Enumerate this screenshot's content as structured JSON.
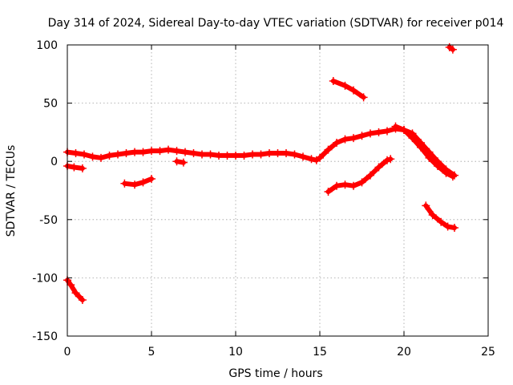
{
  "chart_data": {
    "type": "scatter",
    "title": "Day 314 of 2024, Sidereal Day-to-day VTEC variation (SDTVAR) for receiver p014",
    "xlabel": "GPS time / hours",
    "ylabel": "SDTVAR / TECUs",
    "xlim": [
      0,
      25
    ],
    "ylim": [
      -150,
      100
    ],
    "xticks": [
      0,
      5,
      10,
      15,
      20,
      25
    ],
    "yticks": [
      -150,
      -100,
      -50,
      0,
      50,
      100
    ],
    "xtick_labels": [
      "0",
      "5",
      "10",
      "15",
      "20",
      "25"
    ],
    "ytick_labels": [
      "-150",
      "-100",
      "-50",
      "0",
      "50",
      "100"
    ],
    "grid": true,
    "marker": "+",
    "color": "#ff0000",
    "series": [
      {
        "name": "s1",
        "points": [
          [
            0,
            8
          ],
          [
            0.5,
            7
          ],
          [
            1.0,
            6
          ],
          [
            1.5,
            4
          ],
          [
            2.0,
            3
          ],
          [
            2.5,
            5
          ],
          [
            3.0,
            6
          ],
          [
            3.5,
            7
          ],
          [
            4.0,
            8
          ],
          [
            4.5,
            8
          ],
          [
            5.0,
            9
          ],
          [
            5.5,
            9
          ],
          [
            6.0,
            10
          ],
          [
            6.5,
            9
          ],
          [
            7.0,
            8
          ],
          [
            7.5,
            7
          ],
          [
            8.0,
            6
          ],
          [
            8.5,
            6
          ],
          [
            9.0,
            5
          ],
          [
            9.5,
            5
          ],
          [
            10.0,
            5
          ],
          [
            10.5,
            5
          ],
          [
            11.0,
            6
          ],
          [
            11.5,
            6
          ],
          [
            12.0,
            7
          ],
          [
            12.5,
            7
          ],
          [
            13.0,
            7
          ],
          [
            13.5,
            6
          ],
          [
            14.0,
            4
          ],
          [
            14.5,
            2
          ],
          [
            14.8,
            1
          ],
          [
            15.0,
            3
          ],
          [
            15.5,
            10
          ],
          [
            16.0,
            16
          ],
          [
            16.5,
            19
          ],
          [
            17.0,
            20
          ],
          [
            17.5,
            22
          ],
          [
            18.0,
            24
          ],
          [
            18.5,
            25
          ],
          [
            19.0,
            26
          ],
          [
            19.5,
            28
          ],
          [
            20.0,
            27
          ],
          [
            20.5,
            24
          ],
          [
            21.0,
            16
          ],
          [
            21.5,
            8
          ],
          [
            22.0,
            0
          ],
          [
            22.5,
            -7
          ],
          [
            23.0,
            -12
          ]
        ]
      },
      {
        "name": "s2",
        "points": [
          [
            0,
            -4
          ],
          [
            0.4,
            -5
          ],
          [
            0.9,
            -6
          ]
        ]
      },
      {
        "name": "s3",
        "points": [
          [
            0,
            -102
          ],
          [
            0.2,
            -106
          ],
          [
            0.5,
            -113
          ],
          [
            0.9,
            -119
          ]
        ]
      },
      {
        "name": "s4",
        "points": [
          [
            3.4,
            -19
          ],
          [
            4.0,
            -20
          ],
          [
            4.5,
            -18
          ],
          [
            5.0,
            -15
          ]
        ]
      },
      {
        "name": "s5",
        "points": [
          [
            6.5,
            0
          ],
          [
            6.9,
            -1
          ]
        ]
      },
      {
        "name": "s6",
        "points": [
          [
            15.5,
            -26
          ],
          [
            16.0,
            -21
          ],
          [
            16.5,
            -20
          ],
          [
            17.0,
            -21
          ],
          [
            17.5,
            -18
          ],
          [
            18.0,
            -12
          ],
          [
            18.5,
            -5
          ],
          [
            19.0,
            1
          ],
          [
            19.2,
            2
          ]
        ]
      },
      {
        "name": "s7",
        "points": [
          [
            15.8,
            69
          ],
          [
            16.5,
            65
          ],
          [
            17.0,
            61
          ],
          [
            17.6,
            55
          ]
        ]
      },
      {
        "name": "s8",
        "points": [
          [
            19.5,
            30
          ],
          [
            20.0,
            27
          ],
          [
            20.5,
            20
          ],
          [
            21.0,
            12
          ],
          [
            21.5,
            3
          ],
          [
            22.0,
            -4
          ],
          [
            22.5,
            -10
          ],
          [
            22.9,
            -13
          ]
        ]
      },
      {
        "name": "s9",
        "points": [
          [
            21.3,
            -38
          ],
          [
            21.7,
            -46
          ],
          [
            22.2,
            -52
          ],
          [
            22.6,
            -56
          ],
          [
            23.0,
            -57
          ]
        ]
      },
      {
        "name": "s10",
        "points": [
          [
            22.7,
            98
          ],
          [
            22.9,
            96
          ]
        ]
      }
    ]
  }
}
